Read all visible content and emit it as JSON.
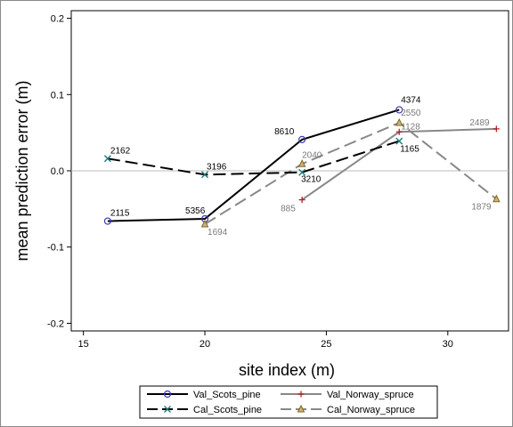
{
  "chart_data": {
    "type": "line",
    "xlabel": "site index (m)",
    "ylabel": "mean prediction error (m)",
    "xlim": [
      14.5,
      32.5
    ],
    "ylim": [
      -0.21,
      0.21
    ],
    "xticks": [
      15,
      20,
      25,
      30
    ],
    "yticks": [
      -0.2,
      -0.1,
      0.0,
      0.1,
      0.2
    ],
    "xtick_labels": [
      "15",
      "20",
      "25",
      "30"
    ],
    "ytick_labels": [
      "-0.2",
      "-0.1",
      "0.0",
      "0.1",
      "0.2"
    ],
    "reference_line_y": 0.0,
    "grid": false,
    "legend_position": "bottom-center",
    "series": [
      {
        "name": "Val_Scots_pine",
        "color": "#000000",
        "line_style": "solid",
        "marker": "circle",
        "marker_color": "#3b3bb0",
        "points": [
          {
            "x": 16,
            "y": -0.066,
            "label": "2115"
          },
          {
            "x": 20,
            "y": -0.063,
            "label": "5356"
          },
          {
            "x": 24,
            "y": 0.041,
            "label": "8610"
          },
          {
            "x": 28,
            "y": 0.08,
            "label": "4374"
          }
        ]
      },
      {
        "name": "Cal_Scots_pine",
        "color": "#000000",
        "line_style": "dashed",
        "marker": "x",
        "marker_color": "#1f7a7a",
        "points": [
          {
            "x": 16,
            "y": 0.016,
            "label": "2162"
          },
          {
            "x": 20,
            "y": -0.005,
            "label": "3196"
          },
          {
            "x": 24,
            "y": -0.002,
            "label": "3210"
          },
          {
            "x": 28,
            "y": 0.039,
            "label": "1165"
          }
        ]
      },
      {
        "name": "Val_Norway_spruce",
        "color": "#888888",
        "line_style": "solid",
        "marker": "plus",
        "marker_color": "#b22222",
        "points": [
          {
            "x": 24,
            "y": -0.038,
            "label": "885"
          },
          {
            "x": 28,
            "y": 0.051,
            "label": "1128"
          },
          {
            "x": 32,
            "y": 0.055,
            "label": "2489"
          }
        ]
      },
      {
        "name": "Cal_Norway_spruce",
        "color": "#888888",
        "line_style": "dashed",
        "marker": "triangle",
        "marker_color": "#7a6a20",
        "marker_fill": "#d4b07a",
        "points": [
          {
            "x": 20,
            "y": -0.07,
            "label": "1694"
          },
          {
            "x": 24,
            "y": 0.009,
            "label": "2040"
          },
          {
            "x": 28,
            "y": 0.063,
            "label": "2550"
          },
          {
            "x": 32,
            "y": -0.037,
            "label": "1879"
          }
        ]
      }
    ]
  }
}
